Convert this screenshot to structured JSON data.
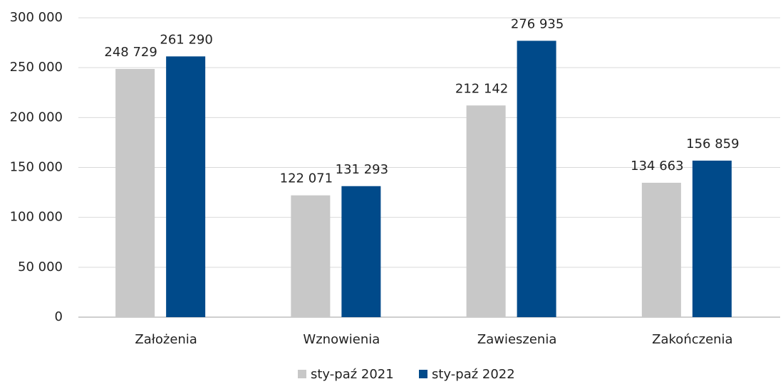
{
  "chart_data": {
    "type": "bar",
    "categories": [
      "Założenia",
      "Wznowienia",
      "Zawieszenia",
      "Zakończenia"
    ],
    "series": [
      {
        "name": "sty-paź 2021",
        "color": "#c8c8c8",
        "values": [
          248729,
          122071,
          212142,
          134663
        ],
        "value_labels": [
          "248 729",
          "122 071",
          "212 142",
          "134 663"
        ]
      },
      {
        "name": "sty-paź 2022",
        "color": "#004a8a",
        "values": [
          261290,
          131293,
          276935,
          156859
        ],
        "value_labels": [
          "261 290",
          "131 293",
          "276 935",
          "156 859"
        ]
      }
    ],
    "ylim": [
      0,
      300000
    ],
    "yticks": [
      0,
      {
        "value": 50000,
        "label": "50 000"
      },
      {
        "value": 100000,
        "label": "100 000"
      },
      {
        "value": 150000,
        "label": "150 000"
      },
      {
        "value": 200000,
        "label": "200 000"
      },
      {
        "value": 250000,
        "label": "250 000"
      },
      {
        "value": 300000,
        "label": "300 000"
      }
    ],
    "grid": true,
    "legend": "bottom"
  }
}
